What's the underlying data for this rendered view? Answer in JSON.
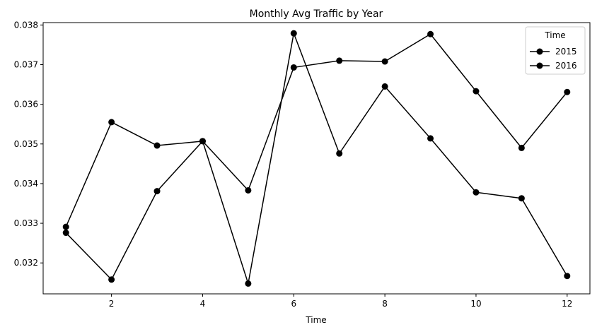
{
  "chart_data": {
    "type": "line",
    "title": "Monthly Avg Traffic by Year",
    "xlabel": "Time",
    "ylabel": "",
    "xlim": [
      0.5,
      12.5
    ],
    "ylim": [
      0.03122,
      0.03806
    ],
    "x_ticks": [
      2,
      4,
      6,
      8,
      10,
      12
    ],
    "y_ticks": [
      0.032,
      0.033,
      0.034,
      0.035,
      0.036,
      0.037,
      0.038
    ],
    "x": [
      1,
      2,
      3,
      4,
      5,
      6,
      7,
      8,
      9,
      10,
      11,
      12
    ],
    "series": [
      {
        "name": "2015",
        "values": [
          0.03291,
          0.03555,
          0.03496,
          0.03507,
          0.03383,
          0.03693,
          0.0371,
          0.03708,
          0.03777,
          0.03633,
          0.0349,
          0.03631
        ],
        "color": "#000000",
        "marker": "circle"
      },
      {
        "name": "2016",
        "values": [
          0.03276,
          0.03158,
          0.03381,
          0.03507,
          0.03148,
          0.03779,
          0.03476,
          0.03645,
          0.03514,
          0.03378,
          0.03363,
          0.03167
        ],
        "color": "#000000",
        "marker": "circle"
      }
    ],
    "legend": {
      "title": "Time",
      "position": "top-right"
    },
    "grid": false
  }
}
